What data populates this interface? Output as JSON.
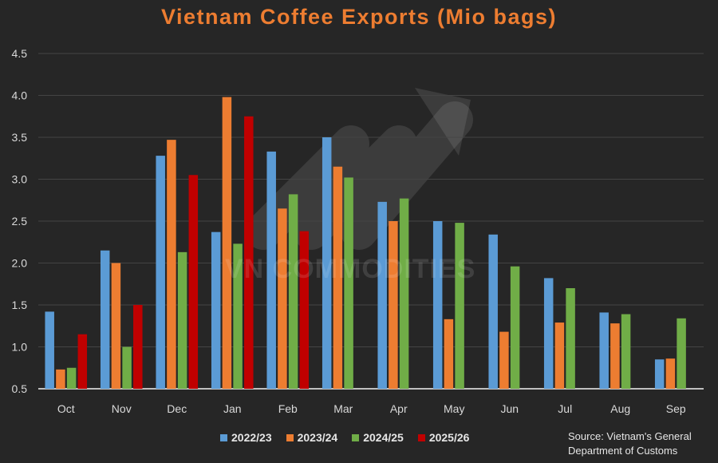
{
  "chart_data": {
    "type": "bar",
    "title": "Vietnam Coffee Exports (Mio bags)",
    "xlabel": "",
    "ylabel": "",
    "ylim": [
      0.5,
      4.5
    ],
    "yticks": [
      "0.5",
      "1.0",
      "1.5",
      "2.0",
      "2.5",
      "3.0",
      "3.5",
      "4.0",
      "4.5"
    ],
    "grid": true,
    "legend_position": "bottom",
    "categories": [
      "Oct",
      "Nov",
      "Dec",
      "Jan",
      "Feb",
      "Mar",
      "Apr",
      "May",
      "Jun",
      "Jul",
      "Aug",
      "Sep"
    ],
    "series": [
      {
        "name": "2022/23",
        "color": "#5B9BD5",
        "values": [
          1.42,
          2.15,
          3.28,
          2.37,
          3.33,
          3.5,
          2.73,
          2.5,
          2.34,
          1.82,
          1.41,
          0.85
        ]
      },
      {
        "name": "2023/24",
        "color": "#ED7D31",
        "values": [
          0.73,
          2.0,
          3.47,
          3.98,
          2.65,
          3.15,
          2.5,
          1.33,
          1.18,
          1.29,
          1.28,
          0.86
        ]
      },
      {
        "name": "2024/25",
        "color": "#70AD47",
        "values": [
          0.75,
          1.0,
          2.13,
          2.23,
          2.82,
          3.02,
          2.77,
          2.48,
          1.96,
          1.7,
          1.39,
          1.34
        ]
      },
      {
        "name": "2025/26",
        "color": "#C00000",
        "values": [
          1.15,
          1.5,
          3.05,
          3.75,
          2.38,
          null,
          null,
          null,
          null,
          null,
          null,
          null
        ]
      }
    ],
    "source_line1": "Source: Vietnam's General",
    "source_line2": "Department of Customs",
    "watermark": "VN COMMODITIES"
  }
}
